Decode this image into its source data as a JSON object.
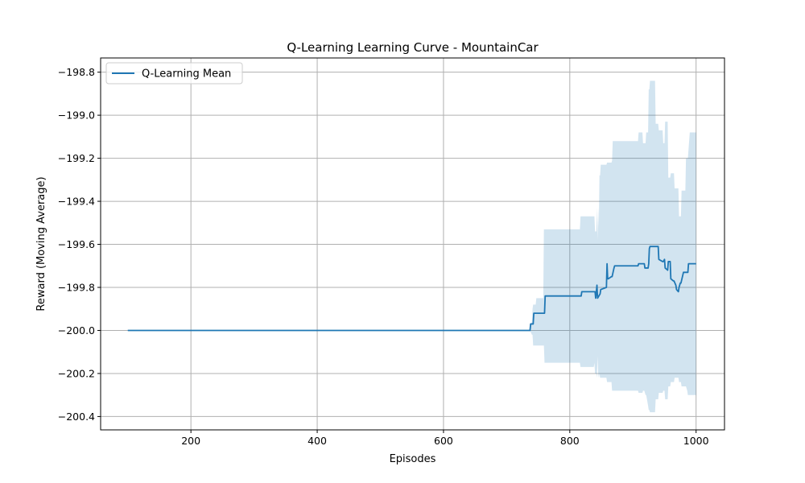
{
  "chart_data": {
    "type": "line",
    "title": "Q-Learning Learning Curve - MountainCar",
    "xlabel": "Episodes",
    "ylabel": "Reward (Moving Average)",
    "xlim": [
      57,
      1045
    ],
    "ylim": [
      -200.462,
      -198.734
    ],
    "xticks": [
      200,
      400,
      600,
      800,
      1000
    ],
    "yticks": [
      -200.4,
      -200.2,
      -200.0,
      -199.8,
      -199.6,
      -199.4,
      -199.2,
      -199.0,
      -198.8
    ],
    "xtick_labels": [
      "200",
      "400",
      "600",
      "800",
      "1000"
    ],
    "ytick_labels": [
      "−200.4",
      "−200.2",
      "−200.0",
      "−199.8",
      "−199.6",
      "−199.4",
      "−199.2",
      "−199.0",
      "−198.8"
    ],
    "grid": true,
    "legend": {
      "position": "top-left",
      "entries": [
        "Q-Learning Mean"
      ]
    },
    "colors": {
      "line": "#1f77b4",
      "band": "#1f77b4",
      "band_opacity": 0.2,
      "grid": "#b0b0b0"
    },
    "series": [
      {
        "name": "Q-Learning Mean",
        "x": [
          100,
          737,
          738,
          742,
          743,
          745,
          746,
          760,
          761,
          818,
          819,
          840,
          841,
          843,
          844,
          848,
          849,
          858,
          859,
          860,
          861,
          866,
          867,
          870,
          871,
          908,
          909,
          918,
          919,
          924,
          925,
          926,
          927,
          940,
          941,
          947,
          948,
          950,
          951,
          955,
          956,
          959,
          960,
          964,
          965,
          968,
          969,
          972,
          973,
          975,
          976,
          980,
          981,
          987,
          988,
          1000
        ],
        "y": [
          -200.0,
          -200.0,
          -199.97,
          -199.97,
          -199.92,
          -199.92,
          -199.92,
          -199.92,
          -199.84,
          -199.84,
          -199.82,
          -199.82,
          -199.85,
          -199.79,
          -199.85,
          -199.83,
          -199.81,
          -199.8,
          -199.69,
          -199.76,
          -199.76,
          -199.75,
          -199.75,
          -199.71,
          -199.7,
          -199.7,
          -199.69,
          -199.69,
          -199.71,
          -199.71,
          -199.69,
          -199.62,
          -199.61,
          -199.61,
          -199.67,
          -199.68,
          -199.68,
          -199.67,
          -199.71,
          -199.72,
          -199.68,
          -199.68,
          -199.76,
          -199.77,
          -199.77,
          -199.79,
          -199.81,
          -199.82,
          -199.8,
          -199.78,
          -199.78,
          -199.73,
          -199.73,
          -199.73,
          -199.69,
          -199.69
        ]
      }
    ],
    "band": {
      "x": [
        737,
        740,
        741,
        742,
        746,
        747,
        758,
        759,
        760,
        761,
        816,
        817,
        838,
        839,
        840,
        842,
        843,
        844,
        845,
        846,
        847,
        848,
        849,
        858,
        859,
        866,
        867,
        868,
        870,
        872,
        873,
        908,
        909,
        915,
        916,
        918,
        920,
        921,
        924,
        925,
        926,
        927,
        935,
        936,
        940,
        941,
        947,
        948,
        950,
        951,
        955,
        956,
        959,
        960,
        965,
        966,
        972,
        973,
        976,
        977,
        983,
        984,
        986,
        987,
        990,
        991,
        1000
      ],
      "low": [
        -200.0,
        -200.02,
        -200.02,
        -200.07,
        -200.07,
        -200.07,
        -200.07,
        -200.07,
        -200.15,
        -200.15,
        -200.15,
        -200.17,
        -200.17,
        -200.15,
        -200.2,
        -200.2,
        -200.22,
        -200.12,
        -200.2,
        -200.22,
        -200.2,
        -200.22,
        -200.22,
        -200.22,
        -200.24,
        -200.24,
        -200.28,
        -200.28,
        -200.28,
        -200.28,
        -200.28,
        -200.28,
        -200.29,
        -200.29,
        -200.28,
        -200.28,
        -200.3,
        -200.3,
        -200.35,
        -200.37,
        -200.37,
        -200.38,
        -200.38,
        -200.32,
        -200.32,
        -200.29,
        -200.29,
        -200.28,
        -200.28,
        -200.32,
        -200.32,
        -200.26,
        -200.26,
        -200.24,
        -200.24,
        -200.22,
        -200.22,
        -200.24,
        -200.24,
        -200.26,
        -200.26,
        -200.26,
        -200.28,
        -200.3,
        -200.3,
        -200.3,
        -200.3
      ],
      "high": [
        -200.0,
        -199.96,
        -199.9,
        -199.88,
        -199.88,
        -199.85,
        -199.85,
        -199.53,
        -199.53,
        -199.53,
        -199.53,
        -199.47,
        -199.47,
        -199.47,
        -199.54,
        -199.54,
        -199.43,
        -199.58,
        -199.43,
        -199.52,
        -199.28,
        -199.28,
        -199.23,
        -199.23,
        -199.22,
        -199.22,
        -199.21,
        -199.12,
        -199.12,
        -199.12,
        -199.12,
        -199.12,
        -199.08,
        -199.08,
        -199.13,
        -199.13,
        -199.13,
        -199.08,
        -199.08,
        -198.88,
        -198.88,
        -198.84,
        -198.84,
        -199.04,
        -199.04,
        -199.07,
        -199.07,
        -199.13,
        -199.13,
        -199.03,
        -199.03,
        -199.29,
        -199.29,
        -199.27,
        -199.27,
        -199.34,
        -199.34,
        -199.47,
        -199.47,
        -199.35,
        -199.35,
        -199.2,
        -199.2,
        -199.2,
        -199.08,
        -199.08,
        -199.08
      ]
    }
  }
}
